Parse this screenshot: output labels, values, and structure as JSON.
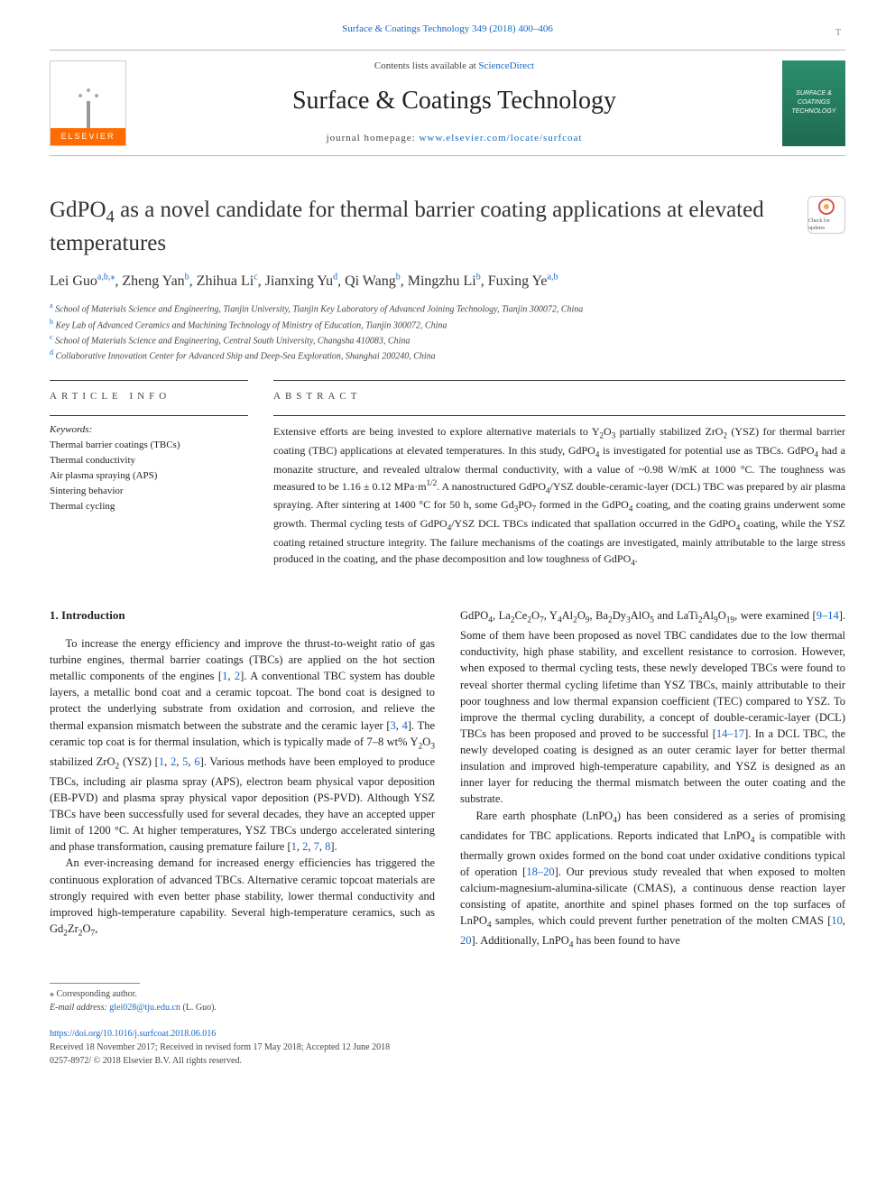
{
  "header": {
    "journal_ref": "Surface & Coatings Technology 349 (2018) 400–406",
    "contents_line_pre": "Contents lists available at ",
    "contents_line_link": "ScienceDirect",
    "journal_name": "Surface & Coatings Technology",
    "homepage_pre": "journal homepage: ",
    "homepage_link": "www.elsevier.com/locate/surfcoat",
    "elsevier_label": "ELSEVIER",
    "cover_text": "SURFACE & COATINGS TECHNOLOGY",
    "check_updates_label": "Check for updates"
  },
  "article": {
    "title_html": "GdPO<sub>4</sub> as a novel candidate for thermal barrier coating applications at elevated temperatures",
    "authors_html": "Lei Guo<sup class=\"sup-link\">a,b,</sup><sup class=\"sup-link\">⁎</sup>, Zheng Yan<sup class=\"sup-link\">b</sup>, Zhihua Li<sup class=\"sup-link\">c</sup>, Jianxing Yu<sup class=\"sup-link\">d</sup>, Qi Wang<sup class=\"sup-link\">b</sup>, Mingzhu Li<sup class=\"sup-link\">b</sup>, Fuxing Ye<sup class=\"sup-link\">a,b</sup>",
    "affiliations": [
      {
        "sup": "a",
        "text": "School of Materials Science and Engineering, Tianjin University, Tianjin Key Laboratory of Advanced Joining Technology, Tianjin 300072, China"
      },
      {
        "sup": "b",
        "text": "Key Lab of Advanced Ceramics and Machining Technology of Ministry of Education, Tianjin 300072, China"
      },
      {
        "sup": "c",
        "text": "School of Materials Science and Engineering, Central South University, Changsha 410083, China"
      },
      {
        "sup": "d",
        "text": "Collaborative Innovation Center for Advanced Ship and Deep-Sea Exploration, Shanghai 200240, China"
      }
    ]
  },
  "info": {
    "head": "ARTICLE INFO",
    "kw_label": "Keywords:",
    "keywords": [
      "Thermal barrier coatings (TBCs)",
      "Thermal conductivity",
      "Air plasma spraying (APS)",
      "Sintering behavior",
      "Thermal cycling"
    ]
  },
  "abstract": {
    "head": "ABSTRACT",
    "text_html": "Extensive efforts are being invested to explore alternative materials to Y<sub>2</sub>O<sub>3</sub> partially stabilized ZrO<sub>2</sub> (YSZ) for thermal barrier coating (TBC) applications at elevated temperatures. In this study, GdPO<sub>4</sub> is investigated for potential use as TBCs. GdPO<sub>4</sub> had a monazite structure, and revealed ultralow thermal conductivity, with a value of ~0.98 W/mK at 1000 °C. The toughness was measured to be 1.16 ± 0.12 MPa·m<sup>1/2</sup>. A nanostructured GdPO<sub>4</sub>/YSZ double-ceramic-layer (DCL) TBC was prepared by air plasma spraying. After sintering at 1400 °C for 50 h, some Gd<sub>3</sub>PO<sub>7</sub> formed in the GdPO<sub>4</sub> coating, and the coating grains underwent some growth. Thermal cycling tests of GdPO<sub>4</sub>/YSZ DCL TBCs indicated that spallation occurred in the GdPO<sub>4</sub> coating, while the YSZ coating retained structure integrity. The failure mechanisms of the coatings are investigated, mainly attributable to the large stress produced in the coating, and the phase decomposition and low toughness of GdPO<sub>4</sub>."
  },
  "body": {
    "intro_head": "1. Introduction",
    "left_paras_html": [
      "To increase the energy efficiency and improve the thrust-to-weight ratio of gas turbine engines, thermal barrier coatings (TBCs) are applied on the hot section metallic components of the engines [<span class=\"cite\">1</span>, <span class=\"cite\">2</span>]. A conventional TBC system has double layers, a metallic bond coat and a ceramic topcoat. The bond coat is designed to protect the underlying substrate from oxidation and corrosion, and relieve the thermal expansion mismatch between the substrate and the ceramic layer [<span class=\"cite\">3</span>, <span class=\"cite\">4</span>]. The ceramic top coat is for thermal insulation, which is typically made of 7–8 wt% Y<sub>2</sub>O<sub>3</sub> stabilized ZrO<sub>2</sub> (YSZ) [<span class=\"cite\">1</span>, <span class=\"cite\">2</span>, <span class=\"cite\">5</span>, <span class=\"cite\">6</span>]. Various methods have been employed to produce TBCs, including air plasma spray (APS), electron beam physical vapor deposition (EB-PVD) and plasma spray physical vapor deposition (PS-PVD). Although YSZ TBCs have been successfully used for several decades, they have an accepted upper limit of 1200 °C. At higher temperatures, YSZ TBCs undergo accelerated sintering and phase transformation, causing premature failure [<span class=\"cite\">1</span>, <span class=\"cite\">2</span>, <span class=\"cite\">7</span>, <span class=\"cite\">8</span>].",
      "An ever-increasing demand for increased energy efficiencies has triggered the continuous exploration of advanced TBCs. Alternative ceramic topcoat materials are strongly required with even better phase stability, lower thermal conductivity and improved high-temperature capability. Several high-temperature ceramics, such as Gd<sub>2</sub>Zr<sub>2</sub>O<sub>7</sub>,"
    ],
    "right_paras_html": [
      "GdPO<sub>4</sub>, La<sub>2</sub>Ce<sub>2</sub>O<sub>7</sub>, Y<sub>4</sub>Al<sub>2</sub>O<sub>9</sub>, Ba<sub>2</sub>Dy<sub>3</sub>AlO<sub>5</sub> and LaTi<sub>2</sub>Al<sub>9</sub>O<sub>19</sub>, were examined [<span class=\"cite\">9–14</span>]. Some of them have been proposed as novel TBC candidates due to the low thermal conductivity, high phase stability, and excellent resistance to corrosion. However, when exposed to thermal cycling tests, these newly developed TBCs were found to reveal shorter thermal cycling lifetime than YSZ TBCs, mainly attributable to their poor toughness and low thermal expansion coefficient (TEC) compared to YSZ. To improve the thermal cycling durability, a concept of double-ceramic-layer (DCL) TBCs has been proposed and proved to be successful [<span class=\"cite\">14–17</span>]. In a DCL TBC, the newly developed coating is designed as an outer ceramic layer for better thermal insulation and improved high-temperature capability, and YSZ is designed as an inner layer for reducing the thermal mismatch between the outer coating and the substrate.",
      "Rare earth phosphate (LnPO<sub>4</sub>) has been considered as a series of promising candidates for TBC applications. Reports indicated that LnPO<sub>4</sub> is compatible with thermally grown oxides formed on the bond coat under oxidative conditions typical of operation [<span class=\"cite\">18–20</span>]. Our previous study revealed that when exposed to molten calcium-magnesium-alumina-silicate (CMAS), a continuous dense reaction layer consisting of apatite, anorthite and spinel phases formed on the top surfaces of LnPO<sub>4</sub> samples, which could prevent further penetration of the molten CMAS [<span class=\"cite\">10</span>, <span class=\"cite\">20</span>]. Additionally, LnPO<sub>4</sub> has been found to have"
    ]
  },
  "footer": {
    "corr_label": "⁎ Corresponding author.",
    "email_label": "E-mail address: ",
    "email": "glei028@tju.edu.cn",
    "email_suffix": " (L. Guo).",
    "doi": "https://doi.org/10.1016/j.surfcoat.2018.06.016",
    "received": "Received 18 November 2017; Received in revised form 17 May 2018; Accepted 12 June 2018",
    "copyright": "0257-8972/ © 2018 Elsevier B.V. All rights reserved."
  },
  "colors": {
    "link": "#1768c4",
    "elsevier_orange": "#ff6b00",
    "cover_green_top": "#2b8f6e",
    "cover_green_bot": "#1e6b52",
    "text": "#222222",
    "rule": "#333333"
  }
}
